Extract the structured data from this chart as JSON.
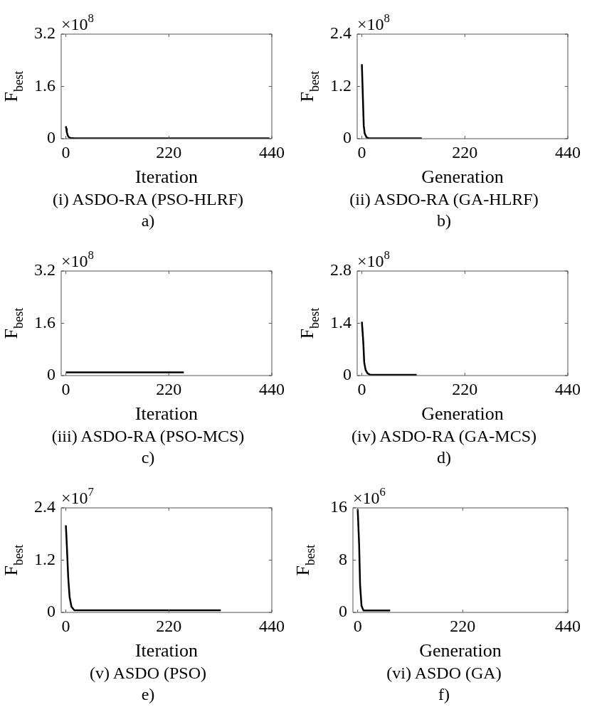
{
  "chart_data": [
    {
      "type": "line",
      "title": "(i) ASDO-RA (PSO-HLRF)",
      "subtitle": "a)",
      "xlabel": "Iteration",
      "ylabel": "F$_{best}$",
      "annotations": [
        "×10$^{8}$"
      ],
      "marker": "none",
      "xlim": [
        -10,
        440
      ],
      "xticks": [
        0,
        220,
        440
      ],
      "ylim": [
        0,
        3.2
      ],
      "yticks": [
        0,
        1.6,
        3.2
      ],
      "series": [
        {
          "color": "#000000",
          "x": [
            0,
            1,
            2,
            4,
            6,
            10,
            20,
            435
          ],
          "values": [
            0.38,
            0.3,
            0.2,
            0.1,
            0.05,
            0.02,
            0.01,
            0.01
          ]
        }
      ]
    },
    {
      "type": "line",
      "title": "(ii) ASDO-RA (GA-HLRF)",
      "subtitle": "b)",
      "xlabel": "Generation",
      "ylabel": "F$_{best}$",
      "annotations": [
        "×10$^{8}$"
      ],
      "marker": "none",
      "xlim": [
        -10,
        440
      ],
      "xticks": [
        0,
        220,
        440
      ],
      "ylim": [
        0,
        2.4
      ],
      "yticks": [
        0,
        1.2,
        2.4
      ],
      "series": [
        {
          "color": "#000000",
          "x": [
            0,
            2,
            4,
            6,
            10,
            15,
            128
          ],
          "values": [
            1.71,
            1.0,
            0.3,
            0.12,
            0.03,
            0.01,
            0.01
          ]
        }
      ]
    },
    {
      "type": "line",
      "title": "(iii) ASDO-RA (PSO-MCS)",
      "subtitle": "c)",
      "xlabel": "Iteration",
      "ylabel": "F$_{best}$",
      "annotations": [
        "×10$^{8}$"
      ],
      "marker": "none",
      "xlim": [
        -10,
        440
      ],
      "xticks": [
        0,
        220,
        440
      ],
      "ylim": [
        0,
        3.2
      ],
      "yticks": [
        0,
        1.6,
        3.2
      ],
      "series": [
        {
          "color": "#000000",
          "x": [
            0,
            252
          ],
          "values": [
            0.1,
            0.1
          ]
        }
      ]
    },
    {
      "type": "line",
      "title": "(iv) ASDO-RA (GA-MCS)",
      "subtitle": "d)",
      "xlabel": "Generation",
      "ylabel": "F$_{best}$",
      "annotations": [
        "×10$^{8}$"
      ],
      "marker": "none",
      "xlim": [
        -10,
        440
      ],
      "xticks": [
        0,
        220,
        440
      ],
      "ylim": [
        0,
        2.8
      ],
      "yticks": [
        0,
        1.4,
        2.8
      ],
      "series": [
        {
          "color": "#000000",
          "x": [
            0,
            3,
            5,
            8,
            12,
            18,
            117
          ],
          "values": [
            1.44,
            0.9,
            0.35,
            0.15,
            0.06,
            0.02,
            0.02
          ]
        }
      ]
    },
    {
      "type": "line",
      "title": "(v) ASDO (PSO)",
      "subtitle": "e)",
      "xlabel": "Iteration",
      "ylabel": "F$_{best}$",
      "annotations": [
        "×10$^{7}$"
      ],
      "marker": "none",
      "xlim": [
        -10,
        440
      ],
      "xticks": [
        0,
        220,
        440
      ],
      "ylim": [
        0,
        2.4
      ],
      "yticks": [
        0,
        1.2,
        2.4
      ],
      "series": [
        {
          "color": "#000000",
          "x": [
            0,
            2,
            5,
            8,
            12,
            18,
            331
          ],
          "values": [
            2.0,
            1.55,
            0.8,
            0.35,
            0.13,
            0.05,
            0.05
          ]
        }
      ]
    },
    {
      "type": "line",
      "title": "(vi) ASDO (GA)",
      "subtitle": "f)",
      "xlabel": "Generation",
      "ylabel": "F$_{best}$",
      "annotations": [
        "×10$^{6}$"
      ],
      "marker": "none",
      "xlim": [
        -10,
        440
      ],
      "xticks": [
        0,
        220,
        440
      ],
      "ylim": [
        0,
        16
      ],
      "yticks": [
        0,
        8,
        16
      ],
      "series": [
        {
          "color": "#000000",
          "x": [
            0,
            3,
            5,
            8,
            12,
            68
          ],
          "values": [
            15.8,
            10.4,
            4.2,
            1.0,
            0.3,
            0.3
          ]
        }
      ]
    }
  ]
}
